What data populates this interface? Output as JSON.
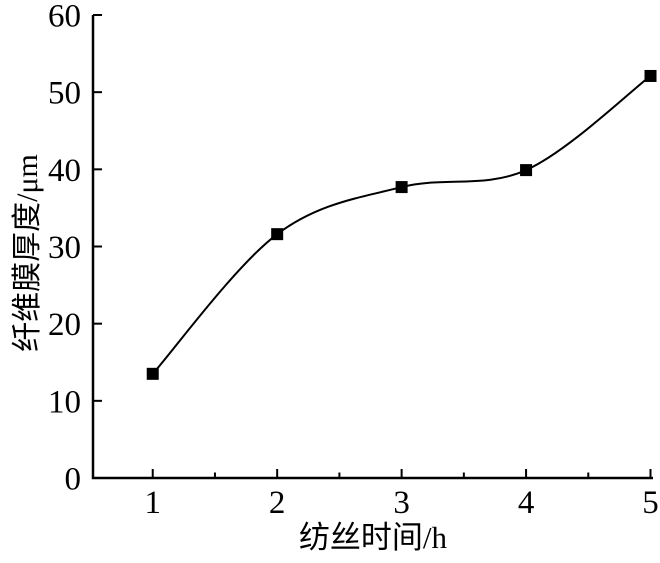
{
  "figure": {
    "background_color": "#ffffff",
    "axis_color": "#000000",
    "line_color": "#000000",
    "marker_color": "#000000"
  },
  "chart_data": {
    "type": "line",
    "title": "",
    "xlabel": "纺丝时间/h",
    "ylabel": "纤维膜厚度/μm",
    "x": [
      1,
      2,
      3,
      4,
      5
    ],
    "series": [
      {
        "name": "纤维膜厚度",
        "values": [
          13.5,
          31.6,
          37.7,
          39.9,
          52.1
        ]
      }
    ],
    "marker": "filled-square",
    "line_style": "smooth-spline",
    "grid": false,
    "legend": null,
    "xlim": [
      0.52,
      5.02
    ],
    "ylim": [
      0,
      60
    ],
    "xticks": [
      1,
      2,
      3,
      4,
      5
    ],
    "xtick_labels": [
      "1",
      "2",
      "3",
      "4",
      "5"
    ],
    "x_minor_ticks": [
      1.5,
      2.5,
      3.5,
      4.5
    ],
    "yticks": [
      0,
      10,
      20,
      30,
      40,
      50,
      60
    ],
    "ytick_labels": [
      "0",
      "10",
      "20",
      "30",
      "40",
      "50",
      "60"
    ]
  }
}
